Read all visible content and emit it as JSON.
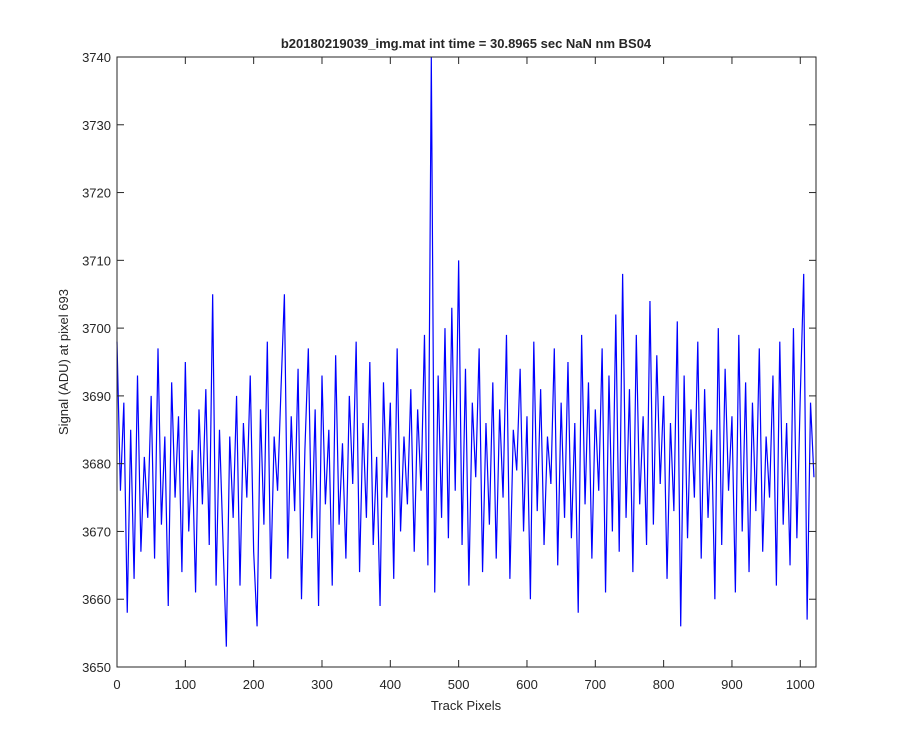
{
  "chart_data": {
    "type": "line",
    "title": "b20180219039_img.mat int time = 30.8965 sec  NaN nm BS04",
    "xlabel": "Track Pixels",
    "ylabel": "Signal (ADU) at pixel 693",
    "xlim": [
      0,
      1023
    ],
    "ylim": [
      3650,
      3740
    ],
    "xticks": [
      0,
      100,
      200,
      300,
      400,
      500,
      600,
      700,
      800,
      900,
      1000
    ],
    "yticks": [
      3650,
      3660,
      3670,
      3680,
      3690,
      3700,
      3710,
      3720,
      3730,
      3740
    ],
    "box": true,
    "grid": false,
    "series": [
      {
        "color": "#0000ff",
        "x": [
          0,
          5,
          10,
          15,
          20,
          25,
          30,
          35,
          40,
          45,
          50,
          55,
          60,
          65,
          70,
          75,
          80,
          85,
          90,
          95,
          100,
          105,
          110,
          115,
          120,
          125,
          130,
          135,
          140,
          145,
          150,
          155,
          160,
          165,
          170,
          175,
          180,
          185,
          190,
          195,
          200,
          205,
          210,
          215,
          220,
          225,
          230,
          235,
          240,
          245,
          250,
          255,
          260,
          265,
          270,
          275,
          280,
          285,
          290,
          295,
          300,
          305,
          310,
          315,
          320,
          325,
          330,
          335,
          340,
          345,
          350,
          355,
          360,
          365,
          370,
          375,
          380,
          385,
          390,
          395,
          400,
          405,
          410,
          415,
          420,
          425,
          430,
          435,
          440,
          445,
          450,
          455,
          460,
          465,
          470,
          475,
          480,
          485,
          490,
          495,
          500,
          505,
          510,
          515,
          520,
          525,
          530,
          535,
          540,
          545,
          550,
          555,
          560,
          565,
          570,
          575,
          580,
          585,
          590,
          595,
          600,
          605,
          610,
          615,
          620,
          625,
          630,
          635,
          640,
          645,
          650,
          655,
          660,
          665,
          670,
          675,
          680,
          685,
          690,
          695,
          700,
          705,
          710,
          715,
          720,
          725,
          730,
          735,
          740,
          745,
          750,
          755,
          760,
          765,
          770,
          775,
          780,
          785,
          790,
          795,
          800,
          805,
          810,
          815,
          820,
          825,
          830,
          835,
          840,
          845,
          850,
          855,
          860,
          865,
          870,
          875,
          880,
          885,
          890,
          895,
          900,
          905,
          910,
          915,
          920,
          925,
          930,
          935,
          940,
          945,
          950,
          955,
          960,
          965,
          970,
          975,
          980,
          985,
          990,
          995,
          1000,
          1005,
          1010,
          1015,
          1020
        ],
        "values": [
          3698,
          3676,
          3689,
          3658,
          3685,
          3663,
          3693,
          3667,
          3681,
          3672,
          3690,
          3666,
          3697,
          3671,
          3684,
          3659,
          3692,
          3675,
          3687,
          3664,
          3695,
          3670,
          3682,
          3661,
          3688,
          3674,
          3691,
          3668,
          3705,
          3662,
          3685,
          3669,
          3653,
          3684,
          3672,
          3690,
          3662,
          3686,
          3675,
          3693,
          3667,
          3656,
          3688,
          3671,
          3698,
          3663,
          3684,
          3676,
          3691,
          3705,
          3666,
          3687,
          3673,
          3694,
          3660,
          3682,
          3697,
          3669,
          3688,
          3659,
          3693,
          3674,
          3685,
          3662,
          3696,
          3671,
          3683,
          3666,
          3690,
          3677,
          3698,
          3664,
          3686,
          3672,
          3695,
          3668,
          3681,
          3659,
          3692,
          3675,
          3689,
          3663,
          3697,
          3670,
          3684,
          3674,
          3691,
          3667,
          3688,
          3676,
          3699,
          3665,
          3740,
          3661,
          3693,
          3672,
          3700,
          3669,
          3703,
          3676,
          3710,
          3668,
          3694,
          3662,
          3689,
          3678,
          3697,
          3664,
          3686,
          3671,
          3692,
          3666,
          3688,
          3675,
          3699,
          3663,
          3685,
          3679,
          3694,
          3670,
          3687,
          3660,
          3698,
          3673,
          3691,
          3668,
          3684,
          3677,
          3697,
          3665,
          3689,
          3672,
          3695,
          3669,
          3686,
          3658,
          3699,
          3674,
          3692,
          3666,
          3688,
          3676,
          3697,
          3661,
          3693,
          3670,
          3702,
          3667,
          3708,
          3672,
          3691,
          3664,
          3699,
          3674,
          3687,
          3668,
          3704,
          3671,
          3696,
          3677,
          3690,
          3663,
          3686,
          3673,
          3701,
          3656,
          3693,
          3669,
          3688,
          3675,
          3698,
          3666,
          3691,
          3672,
          3685,
          3660,
          3700,
          3668,
          3694,
          3676,
          3687,
          3661,
          3699,
          3670,
          3692,
          3664,
          3689,
          3673,
          3697,
          3667,
          3684,
          3675,
          3693,
          3662,
          3698,
          3671,
          3686,
          3665,
          3700,
          3669,
          3690,
          3708,
          3657,
          3689,
          3678
        ]
      }
    ]
  }
}
